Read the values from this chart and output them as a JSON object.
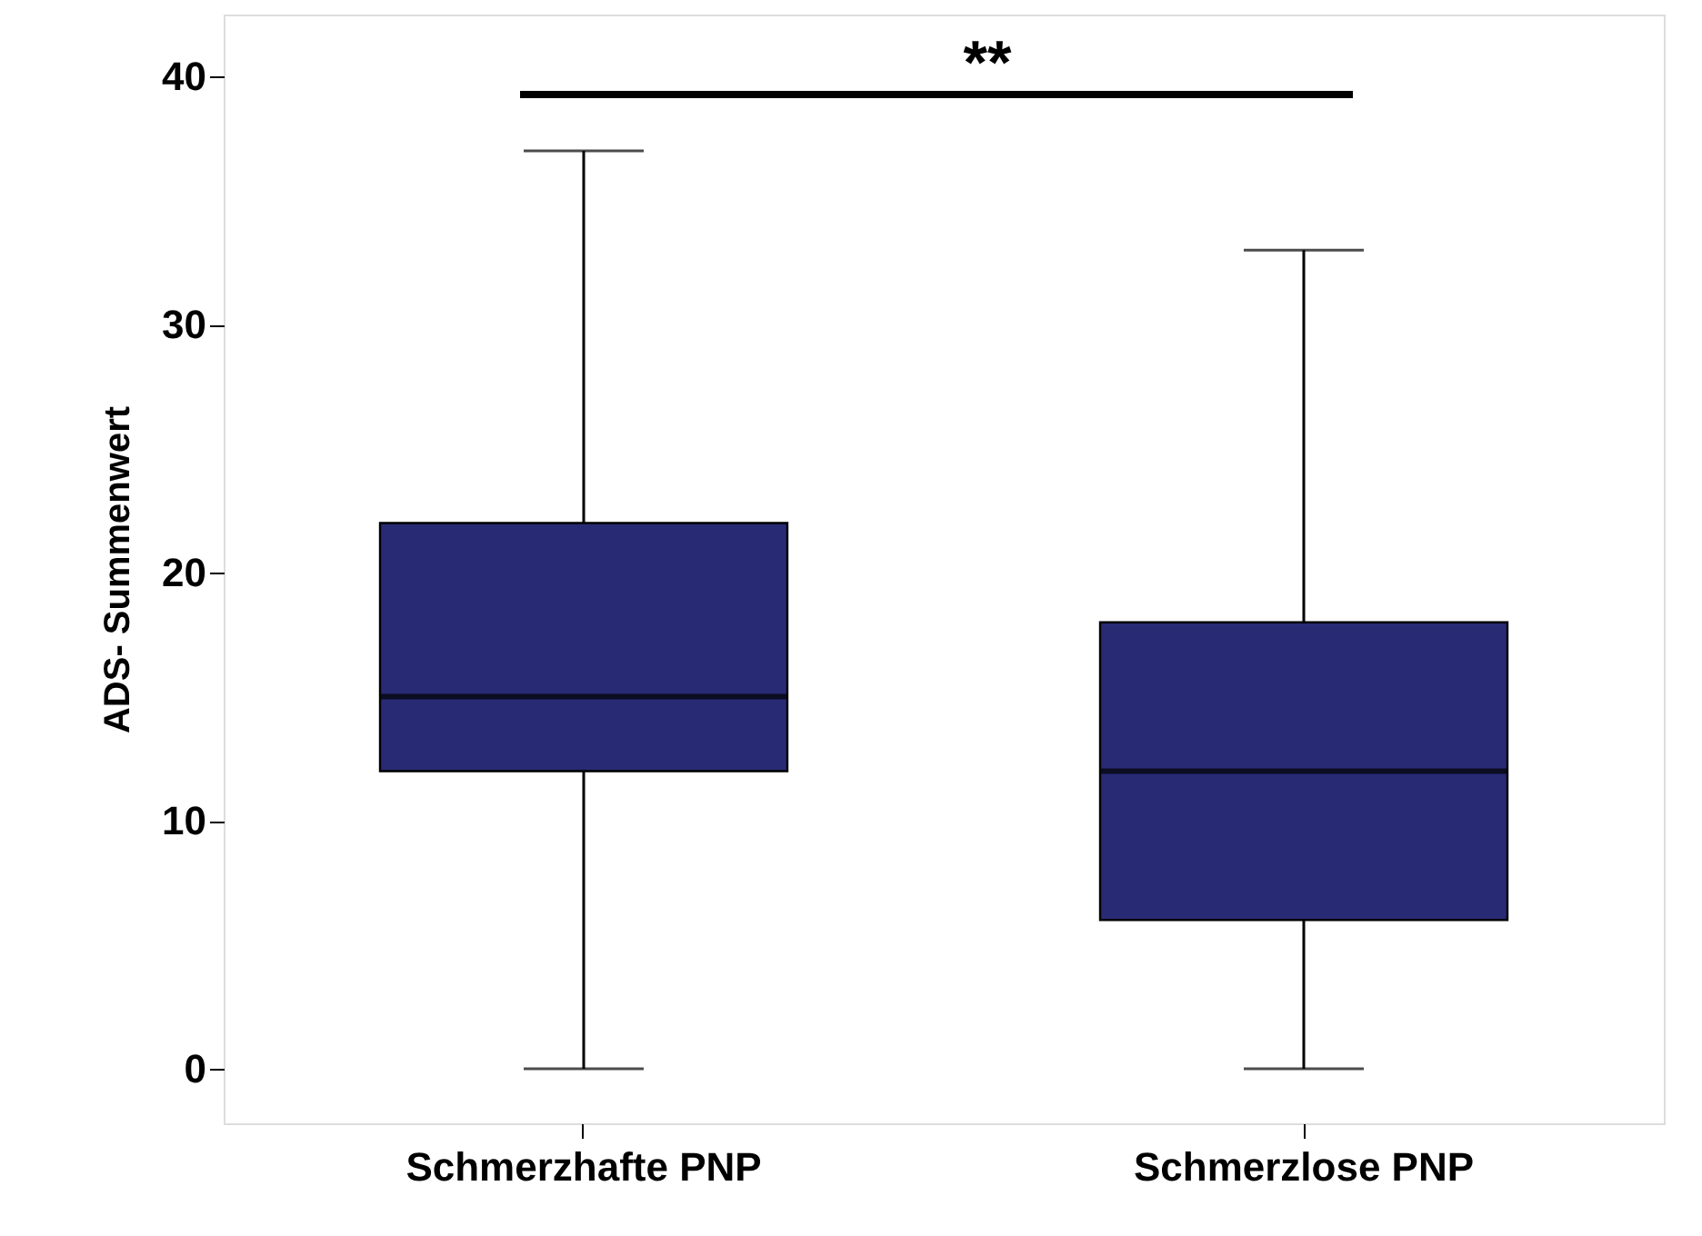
{
  "chart_data": {
    "type": "box",
    "ylabel": "ADS- Summenwert",
    "categories": [
      "Schmerzhafte PNP",
      "Schmerzlose PNP"
    ],
    "color": "#282a74",
    "boxes": [
      {
        "low": 0,
        "q1": 12,
        "median": 15,
        "q3": 22,
        "high": 37
      },
      {
        "low": 0,
        "q1": 6,
        "median": 12,
        "q3": 18,
        "high": 33
      }
    ],
    "ylim": [
      -2.2,
      42.5
    ],
    "yticks": [
      0,
      10,
      20,
      30,
      40
    ],
    "grid": false,
    "annotations": [
      "**"
    ]
  }
}
